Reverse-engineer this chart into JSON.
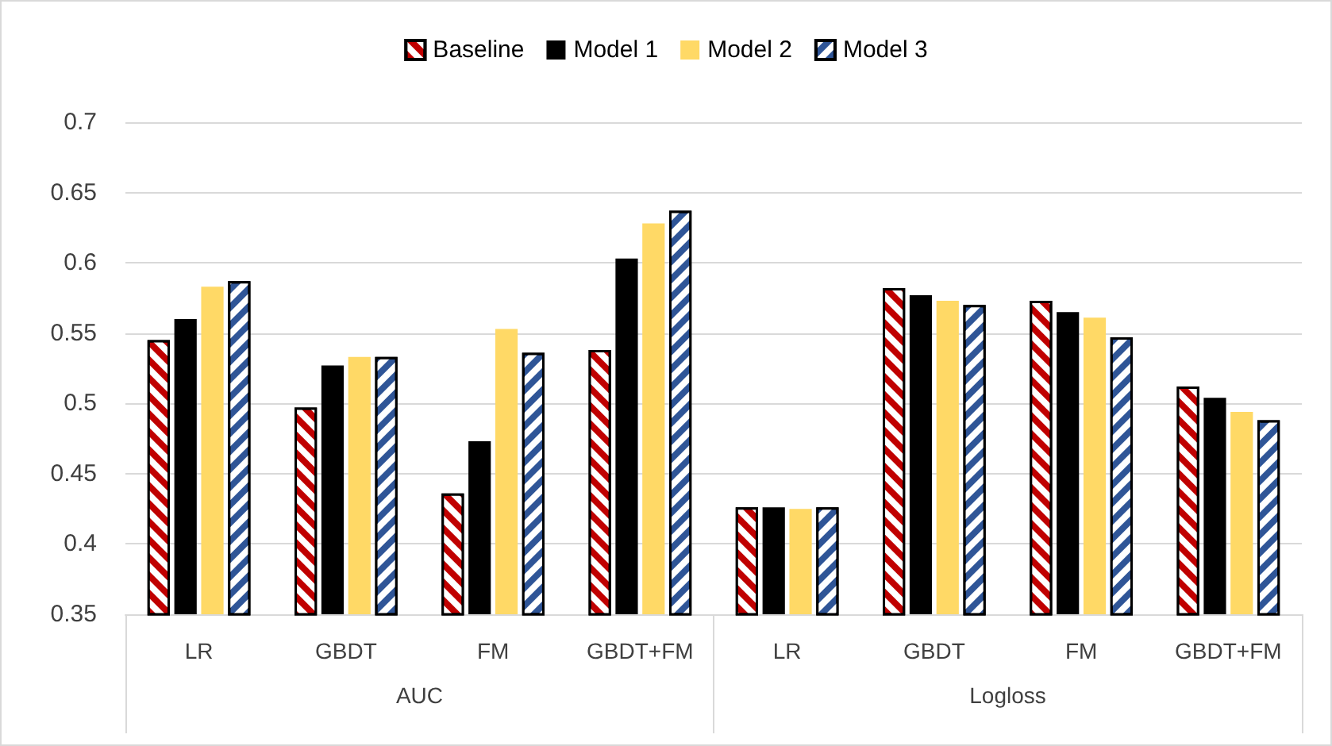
{
  "chart_data": {
    "type": "bar",
    "categories": [
      "LR",
      "GBDT",
      "FM",
      "GBDT+FM",
      "LR",
      "GBDT",
      "FM",
      "GBDT+FM"
    ],
    "annotations": [
      "AUC",
      "Logloss"
    ],
    "series": [
      {
        "name": "Baseline",
        "color": "#c00000",
        "values": [
          0.545,
          0.497,
          0.436,
          0.538,
          0.426,
          0.582,
          0.573,
          0.512
        ]
      },
      {
        "name": "Model 1",
        "color": "#000000",
        "values": [
          0.56,
          0.527,
          0.473,
          0.603,
          0.426,
          0.577,
          0.565,
          0.504
        ]
      },
      {
        "name": "Model 2",
        "color": "#ffd966",
        "values": [
          0.583,
          0.533,
          0.553,
          0.628,
          0.425,
          0.573,
          0.561,
          0.494
        ]
      },
      {
        "name": "Model 3",
        "color": "#2f5597",
        "values": [
          0.587,
          0.533,
          0.536,
          0.637,
          0.426,
          0.57,
          0.547,
          0.488
        ]
      }
    ],
    "ylim": [
      0.35,
      0.7
    ],
    "yticks": [
      0.35,
      0.4,
      0.45,
      0.5,
      0.55,
      0.6,
      0.65,
      0.7
    ],
    "grid": "y",
    "legend": "top"
  }
}
